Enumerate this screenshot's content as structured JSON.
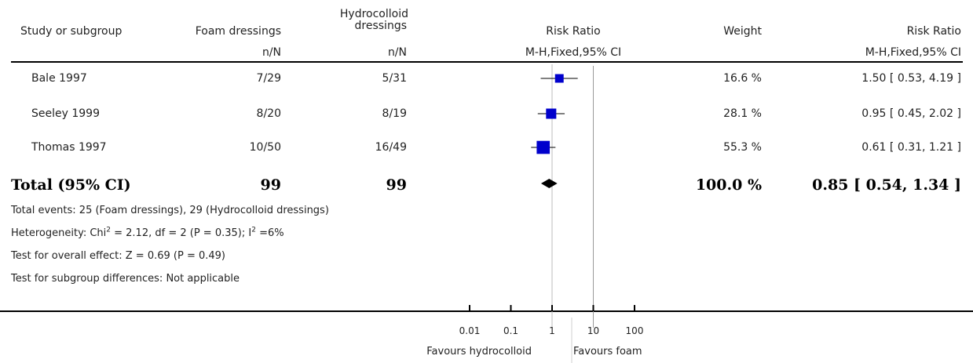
{
  "header": {
    "study_label": "Study or subgroup",
    "col1_title": "Foam dressings",
    "col1_sub": "n/N",
    "col2_title_l1": "Hydrocolloid",
    "col2_title_l2": "dressings",
    "col2_sub": "n/N",
    "plot_title": "Risk Ratio",
    "plot_sub": "M-H,Fixed,95% CI",
    "weight_title": "Weight",
    "rr_title": "Risk Ratio",
    "rr_sub": "M-H,Fixed,95% CI"
  },
  "total": {
    "label": "Total (95% CI)",
    "n1": "99",
    "n2": "99",
    "weight": "100.0 %",
    "ci_text": "0.85 [ 0.54, 1.34 ]"
  },
  "footnotes": {
    "events": "Total events: 25 (Foam dressings), 29 (Hydrocolloid dressings)",
    "het_a": "Heterogeneity: Chi",
    "het_b": " = 2.12, df = 2 (P = 0.35); I",
    "het_c": " =6%",
    "sup2": "2",
    "overall": "Test for overall effect: Z = 0.69 (P = 0.49)",
    "subgroup": "Test for subgroup differences: Not applicable"
  },
  "axis": {
    "ticks": [
      "0.01",
      "0.1",
      "1",
      "10",
      "100"
    ],
    "favours_left": "Favours hydrocolloid",
    "favours_right": "Favours foam"
  },
  "chart_data": {
    "type": "forest",
    "scale": "log",
    "xlim": [
      0.01,
      100
    ],
    "studies": [
      {
        "name": "Bale 1997",
        "events1": "7/29",
        "events2": "5/31",
        "weight": "16.6 %",
        "ci_text": "1.50 [ 0.53, 4.19 ]",
        "rr": 1.5,
        "lo": 0.53,
        "hi": 4.19,
        "w": 16.6
      },
      {
        "name": "Seeley 1999",
        "events1": "8/20",
        "events2": "8/19",
        "weight": "28.1 %",
        "ci_text": "0.95 [ 0.45, 2.02 ]",
        "rr": 0.95,
        "lo": 0.45,
        "hi": 2.02,
        "w": 28.1
      },
      {
        "name": "Thomas 1997",
        "events1": "10/50",
        "events2": "16/49",
        "weight": "55.3 %",
        "ci_text": "0.61 [ 0.31, 1.21 ]",
        "rr": 0.61,
        "lo": 0.31,
        "hi": 1.21,
        "w": 55.3
      }
    ],
    "pooled": {
      "rr": 0.85,
      "lo": 0.54,
      "hi": 1.34
    },
    "square_color": "#0000cc"
  }
}
